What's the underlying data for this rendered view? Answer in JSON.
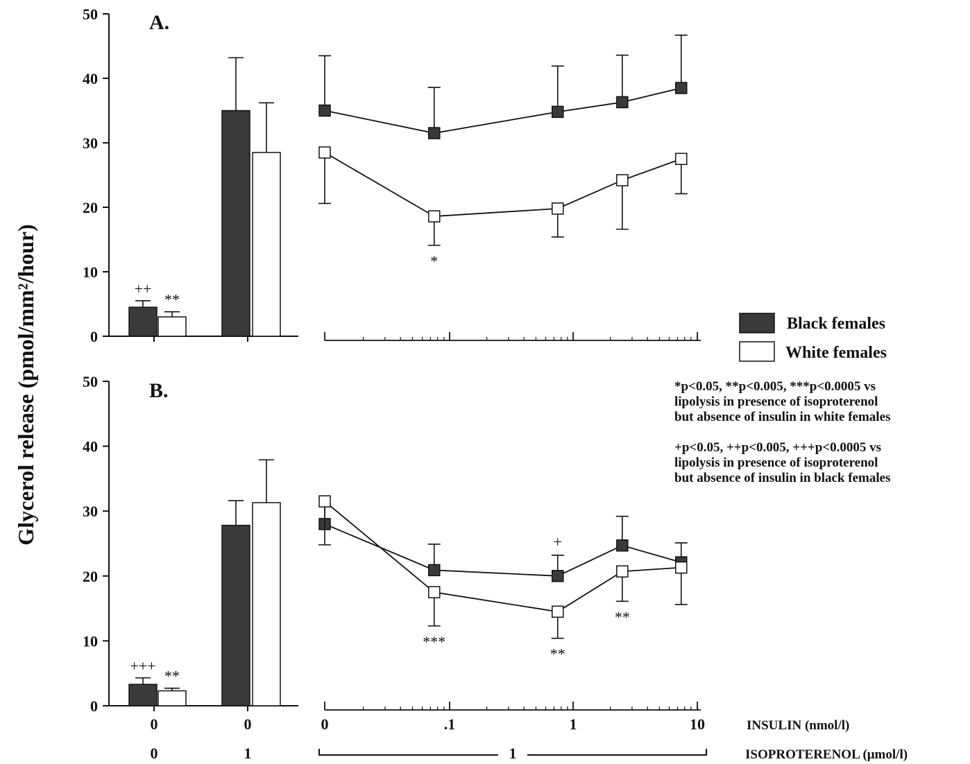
{
  "chart_data": {
    "ylabel": "Glycerol release (pmol/mm²/hour)",
    "legend": {
      "black_label": "Black females",
      "white_label": "White females",
      "placement": "right"
    },
    "notes": [
      [
        "*p<0.05, **p<0.005, ***p<0.0005 vs",
        "lipolysis in presence of isoproterenol",
        "but absence of insulin in white females"
      ],
      [
        "+p<0.05, ++p<0.005, +++p<0.0005 vs",
        "lipolysis in presence of isoproterenol",
        "but absence of insulin in black females"
      ]
    ],
    "x_axis": {
      "insulin_label": "INSULIN (nmol/l)",
      "isoproterenol_label": "ISOPROTERENOL (μmol/l)",
      "bar_insulin_ticks": [
        "0",
        "0"
      ],
      "bar_iso_ticks": [
        "0",
        "1"
      ],
      "line_insulin_ticks": [
        "0",
        ".1",
        "1",
        "10"
      ],
      "line_iso_value": "1",
      "line_x_scale": "log",
      "line_x_points": [
        0,
        0.075,
        0.75,
        2.5,
        7.5
      ]
    },
    "panels": [
      {
        "label": "A.",
        "ylim": [
          0,
          50
        ],
        "yticks": [
          "0",
          "10",
          "20",
          "30",
          "40",
          "50"
        ],
        "type": "bar+line",
        "bars": {
          "categories": [
            "insulin 0 / isoproterenol 0",
            "insulin 0 / isoproterenol 1"
          ],
          "black": [
            4.5,
            35.0
          ],
          "black_err": [
            1.0,
            8.2
          ],
          "white": [
            3.0,
            28.5
          ],
          "white_err": [
            0.8,
            7.7
          ],
          "black_sig": [
            "++",
            ""
          ],
          "white_sig": [
            "**",
            ""
          ]
        },
        "lines": {
          "black": [
            35.0,
            31.5,
            34.8,
            36.3,
            38.5
          ],
          "black_err": [
            8.5,
            7.1,
            7.1,
            7.3,
            8.2
          ],
          "white": [
            28.5,
            18.6,
            19.8,
            24.2,
            27.5
          ],
          "white_err": [
            7.9,
            4.5,
            4.4,
            7.6,
            5.4
          ],
          "black_sig": [
            "",
            "",
            "",
            "",
            ""
          ],
          "white_sig": [
            "",
            "*",
            "",
            "",
            ""
          ]
        }
      },
      {
        "label": "B.",
        "ylim": [
          0,
          50
        ],
        "yticks": [
          "0",
          "10",
          "20",
          "30",
          "40",
          "50"
        ],
        "type": "bar+line",
        "bars": {
          "categories": [
            "insulin 0 / isoproterenol 0",
            "insulin 0 / isoproterenol 1"
          ],
          "black": [
            3.3,
            27.8
          ],
          "black_err": [
            1.0,
            3.8
          ],
          "white": [
            2.3,
            31.3
          ],
          "white_err": [
            0.4,
            6.6
          ],
          "black_sig": [
            "+++",
            ""
          ],
          "white_sig": [
            "**",
            ""
          ]
        },
        "lines": {
          "black": [
            28.0,
            20.9,
            20.0,
            24.7,
            22.1
          ],
          "black_err": [
            4.0,
            4.0,
            3.2,
            4.5,
            3.0
          ],
          "white": [
            31.5,
            17.5,
            14.5,
            20.7,
            21.3
          ],
          "white_err": [
            6.7,
            5.2,
            4.1,
            4.6,
            5.7
          ],
          "black_sig": [
            "",
            "",
            "+",
            "",
            ""
          ],
          "white_sig": [
            "",
            "***",
            "**",
            "**",
            ""
          ]
        }
      }
    ]
  }
}
